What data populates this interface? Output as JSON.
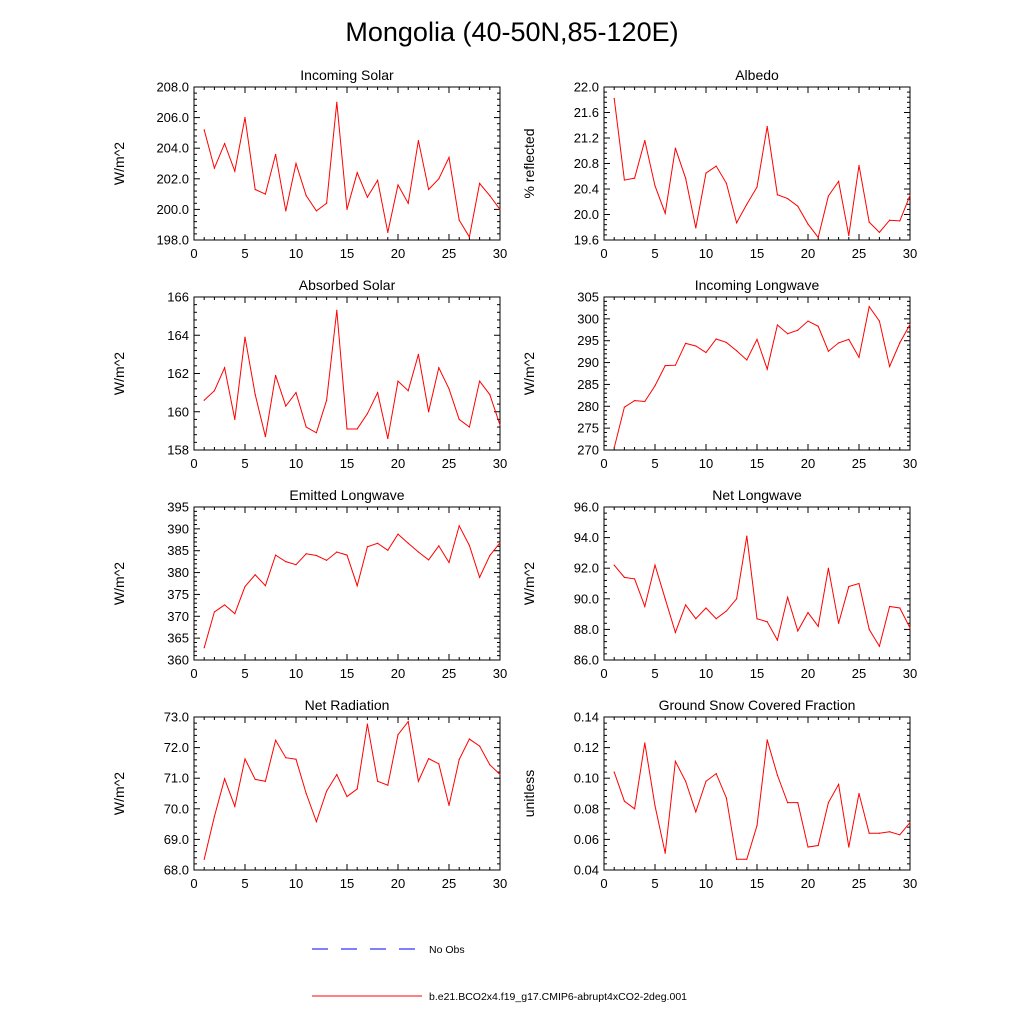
{
  "figure_title": "Mongolia (40-50N,85-120E)",
  "colors": {
    "model": "#ff0000",
    "obs": "#0000ff",
    "axis": "#000000"
  },
  "legend": {
    "obs_label": "No Obs",
    "model_label": "b.e21.BCO2x4.f19_g17.CMIP6-abrupt4xCO2-2deg.001"
  },
  "chart_data": [
    {
      "type": "line",
      "title": "Incoming Solar",
      "ylabel": "W/m^2",
      "xlim": [
        0,
        30
      ],
      "ylim": [
        198,
        208
      ],
      "xticks": [
        0,
        5,
        10,
        15,
        20,
        25,
        30
      ],
      "yticks": [
        198,
        200,
        202,
        204,
        206,
        208
      ],
      "ytick_labels": [
        "198.0",
        "200.0",
        "202.0",
        "204.0",
        "206.0",
        "208.0"
      ],
      "x": [
        1,
        2,
        3,
        4,
        5,
        6,
        7,
        8,
        9,
        10,
        11,
        12,
        13,
        14,
        15,
        16,
        17,
        18,
        19,
        20,
        21,
        22,
        23,
        24,
        25,
        26,
        27,
        28,
        29,
        30
      ],
      "series": [
        {
          "name": "b.e21.BCO2x4.f19_g17.CMIP6-abrupt4xCO2-2deg.001",
          "values": [
            205.2,
            202.7,
            204.3,
            202.5,
            206.0,
            201.3,
            201.0,
            203.6,
            199.9,
            203.0,
            200.9,
            199.9,
            200.4,
            207.0,
            200.0,
            202.4,
            200.8,
            201.9,
            198.5,
            201.6,
            200.4,
            204.5,
            201.3,
            202.0,
            203.4,
            199.3,
            198.2,
            201.7,
            200.9,
            200.0
          ]
        }
      ]
    },
    {
      "type": "line",
      "title": "Albedo",
      "ylabel": "% reflected",
      "xlim": [
        0,
        30
      ],
      "ylim": [
        19.6,
        22.0
      ],
      "xticks": [
        0,
        5,
        10,
        15,
        20,
        25,
        30
      ],
      "yticks": [
        19.6,
        20.0,
        20.4,
        20.8,
        21.2,
        21.6,
        22.0
      ],
      "ytick_labels": [
        "19.6",
        "20.0",
        "20.4",
        "20.8",
        "21.2",
        "21.6",
        "22.0"
      ],
      "x": [
        1,
        2,
        3,
        4,
        5,
        6,
        7,
        8,
        9,
        10,
        11,
        12,
        13,
        14,
        15,
        16,
        17,
        18,
        19,
        20,
        21,
        22,
        23,
        24,
        25,
        26,
        27,
        28,
        29,
        30
      ],
      "series": [
        {
          "name": "b.e21.BCO2x4.f19_g17.CMIP6-abrupt4xCO2-2deg.001",
          "values": [
            21.82,
            20.54,
            20.57,
            21.16,
            20.45,
            20.02,
            21.04,
            20.57,
            19.79,
            20.65,
            20.76,
            20.49,
            19.87,
            20.16,
            20.43,
            21.38,
            20.31,
            20.25,
            20.13,
            19.85,
            19.64,
            20.29,
            20.52,
            19.67,
            20.77,
            19.88,
            19.72,
            19.91,
            19.9,
            20.3
          ]
        }
      ]
    },
    {
      "type": "line",
      "title": "Absorbed Solar",
      "ylabel": "W/m^2",
      "xlim": [
        0,
        30
      ],
      "ylim": [
        158,
        166
      ],
      "xticks": [
        0,
        5,
        10,
        15,
        20,
        25,
        30
      ],
      "yticks": [
        158,
        160,
        162,
        164,
        166
      ],
      "ytick_labels": [
        "158",
        "160",
        "162",
        "164",
        "166"
      ],
      "x": [
        1,
        2,
        3,
        4,
        5,
        6,
        7,
        8,
        9,
        10,
        11,
        12,
        13,
        14,
        15,
        16,
        17,
        18,
        19,
        20,
        21,
        22,
        23,
        24,
        25,
        26,
        27,
        28,
        29,
        30
      ],
      "series": [
        {
          "name": "b.e21.BCO2x4.f19_g17.CMIP6-abrupt4xCO2-2deg.001",
          "values": [
            160.6,
            161.1,
            162.3,
            159.6,
            163.9,
            160.9,
            158.7,
            161.9,
            160.3,
            161.0,
            159.2,
            158.9,
            160.6,
            165.3,
            159.1,
            159.1,
            159.9,
            161.0,
            158.6,
            161.6,
            161.1,
            163.0,
            160.0,
            162.3,
            161.2,
            159.6,
            159.2,
            161.6,
            160.9,
            159.3
          ]
        }
      ]
    },
    {
      "type": "line",
      "title": "Incoming Longwave",
      "ylabel": "W/m^2",
      "xlim": [
        0,
        30
      ],
      "ylim": [
        270,
        305
      ],
      "xticks": [
        0,
        5,
        10,
        15,
        20,
        25,
        30
      ],
      "yticks": [
        270,
        275,
        280,
        285,
        290,
        295,
        300,
        305
      ],
      "ytick_labels": [
        "270",
        "275",
        "280",
        "285",
        "290",
        "295",
        "300",
        "305"
      ],
      "x": [
        1,
        2,
        3,
        4,
        5,
        6,
        7,
        8,
        9,
        10,
        11,
        12,
        13,
        14,
        15,
        16,
        17,
        18,
        19,
        20,
        21,
        22,
        23,
        24,
        25,
        26,
        27,
        28,
        29,
        30
      ],
      "series": [
        {
          "name": "b.e21.BCO2x4.f19_g17.CMIP6-abrupt4xCO2-2deg.001",
          "values": [
            270.5,
            279.8,
            281.3,
            281.1,
            284.7,
            289.3,
            289.4,
            294.4,
            293.8,
            292.3,
            295.4,
            294.6,
            292.7,
            290.6,
            295.3,
            288.5,
            298.6,
            296.6,
            297.4,
            299.5,
            298.3,
            292.6,
            294.5,
            295.3,
            291.2,
            302.8,
            299.5,
            289.1,
            294.5,
            298.7
          ]
        }
      ]
    },
    {
      "type": "line",
      "title": "Emitted Longwave",
      "ylabel": "W/m^2",
      "xlim": [
        0,
        30
      ],
      "ylim": [
        360,
        395
      ],
      "xticks": [
        0,
        5,
        10,
        15,
        20,
        25,
        30
      ],
      "yticks": [
        360,
        365,
        370,
        375,
        380,
        385,
        390,
        395
      ],
      "ytick_labels": [
        "360",
        "365",
        "370",
        "375",
        "380",
        "385",
        "390",
        "395"
      ],
      "x": [
        1,
        2,
        3,
        4,
        5,
        6,
        7,
        8,
        9,
        10,
        11,
        12,
        13,
        14,
        15,
        16,
        17,
        18,
        19,
        20,
        21,
        22,
        23,
        24,
        25,
        26,
        27,
        28,
        29,
        30
      ],
      "series": [
        {
          "name": "b.e21.BCO2x4.f19_g17.CMIP6-abrupt4xCO2-2deg.001",
          "values": [
            362.8,
            371.0,
            372.6,
            370.6,
            376.8,
            379.5,
            377.0,
            384.0,
            382.5,
            381.8,
            384.3,
            383.9,
            382.8,
            384.7,
            384.0,
            377.0,
            385.9,
            386.7,
            385.1,
            388.8,
            386.7,
            384.7,
            382.9,
            386.1,
            382.3,
            390.7,
            386.2,
            378.9,
            383.9,
            386.8
          ]
        }
      ]
    },
    {
      "type": "line",
      "title": "Net Longwave",
      "ylabel": "W/m^2",
      "xlim": [
        0,
        30
      ],
      "ylim": [
        86,
        96
      ],
      "xticks": [
        0,
        5,
        10,
        15,
        20,
        25,
        30
      ],
      "yticks": [
        86,
        88,
        90,
        92,
        94,
        96
      ],
      "ytick_labels": [
        "86.0",
        "88.0",
        "90.0",
        "92.0",
        "94.0",
        "96.0"
      ],
      "x": [
        1,
        2,
        3,
        4,
        5,
        6,
        7,
        8,
        9,
        10,
        11,
        12,
        13,
        14,
        15,
        16,
        17,
        18,
        19,
        20,
        21,
        22,
        23,
        24,
        25,
        26,
        27,
        28,
        29,
        30
      ],
      "series": [
        {
          "name": "b.e21.BCO2x4.f19_g17.CMIP6-abrupt4xCO2-2deg.001",
          "values": [
            92.2,
            91.4,
            91.3,
            89.5,
            92.2,
            90.0,
            87.8,
            89.6,
            88.7,
            89.4,
            88.7,
            89.2,
            90.0,
            94.1,
            88.7,
            88.5,
            87.3,
            90.1,
            87.9,
            89.1,
            88.2,
            92.0,
            88.4,
            90.8,
            91.0,
            88.0,
            86.9,
            89.5,
            89.4,
            88.1
          ]
        }
      ]
    },
    {
      "type": "line",
      "title": "Net Radiation",
      "ylabel": "W/m^2",
      "xlim": [
        0,
        30
      ],
      "ylim": [
        68,
        73
      ],
      "xticks": [
        0,
        5,
        10,
        15,
        20,
        25,
        30
      ],
      "yticks": [
        68,
        69,
        70,
        71,
        72,
        73
      ],
      "ytick_labels": [
        "68.0",
        "69.0",
        "70.0",
        "71.0",
        "72.0",
        "73.0"
      ],
      "x": [
        1,
        2,
        3,
        4,
        5,
        6,
        7,
        8,
        9,
        10,
        11,
        12,
        13,
        14,
        15,
        16,
        17,
        18,
        19,
        20,
        21,
        22,
        23,
        24,
        25,
        26,
        27,
        28,
        29,
        30
      ],
      "series": [
        {
          "name": "b.e21.BCO2x4.f19_g17.CMIP6-abrupt4xCO2-2deg.001",
          "values": [
            68.35,
            69.75,
            70.98,
            70.08,
            71.63,
            70.96,
            70.9,
            72.24,
            71.67,
            71.62,
            70.5,
            69.58,
            70.58,
            71.12,
            70.4,
            70.65,
            72.77,
            70.9,
            70.77,
            72.42,
            72.85,
            70.9,
            71.64,
            71.47,
            70.11,
            71.61,
            72.28,
            72.05,
            71.44,
            71.12
          ]
        }
      ]
    },
    {
      "type": "line",
      "title": "Ground Snow Covered Fraction",
      "ylabel": "unitless",
      "xlim": [
        0,
        30
      ],
      "ylim": [
        0.04,
        0.14
      ],
      "xticks": [
        0,
        5,
        10,
        15,
        20,
        25,
        30
      ],
      "yticks": [
        0.04,
        0.06,
        0.08,
        0.1,
        0.12,
        0.14
      ],
      "ytick_labels": [
        "0.04",
        "0.06",
        "0.08",
        "0.10",
        "0.12",
        "0.14"
      ],
      "x": [
        1,
        2,
        3,
        4,
        5,
        6,
        7,
        8,
        9,
        10,
        11,
        12,
        13,
        14,
        15,
        16,
        17,
        18,
        19,
        20,
        21,
        22,
        23,
        24,
        25,
        26,
        27,
        28,
        29,
        30
      ],
      "series": [
        {
          "name": "b.e21.BCO2x4.f19_g17.CMIP6-abrupt4xCO2-2deg.001",
          "values": [
            0.104,
            0.085,
            0.08,
            0.123,
            0.082,
            0.051,
            0.111,
            0.098,
            0.078,
            0.098,
            0.103,
            0.087,
            0.047,
            0.047,
            0.069,
            0.125,
            0.102,
            0.084,
            0.084,
            0.055,
            0.056,
            0.084,
            0.096,
            0.055,
            0.09,
            0.064,
            0.064,
            0.065,
            0.063,
            0.071
          ]
        }
      ]
    }
  ]
}
